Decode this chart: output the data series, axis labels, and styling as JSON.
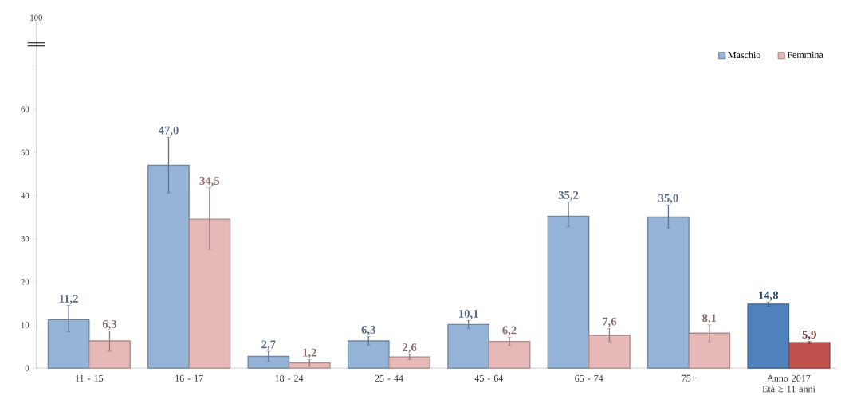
{
  "chart_data": {
    "type": "bar",
    "categories": [
      "11 - 15",
      "16 - 17",
      "18 - 24",
      "25 - 44",
      "45 - 64",
      "65 - 74",
      "75+",
      "Anno 2017 Età ≥ 11 anni"
    ],
    "series": [
      {
        "name": "Maschio",
        "color": "#95b3d7",
        "colors": [
          "#95b3d7",
          "#95b3d7",
          "#95b3d7",
          "#95b3d7",
          "#95b3d7",
          "#95b3d7",
          "#95b3d7",
          "#4f81bd"
        ],
        "values": [
          11.2,
          47.0,
          2.7,
          6.3,
          10.1,
          35.2,
          35.0,
          14.8
        ],
        "value_labels": [
          "11,2",
          "47,0",
          "2,7",
          "6,3",
          "10,1",
          "35,2",
          "35,0",
          "14,8"
        ],
        "errors": [
          [
            8.4,
            14.5
          ],
          [
            40.6,
            53.5
          ],
          [
            1.5,
            3.9
          ],
          [
            5.3,
            7.3
          ],
          [
            9.2,
            11.0
          ],
          [
            32.7,
            38.5
          ],
          [
            32.5,
            37.8
          ],
          [
            14.3,
            15.3
          ]
        ]
      },
      {
        "name": "Femmina",
        "color": "#e6b9b8",
        "colors": [
          "#e6b9b8",
          "#e6b9b8",
          "#e6b9b8",
          "#e6b9b8",
          "#e6b9b8",
          "#e6b9b8",
          "#e6b9b8",
          "#c0504d"
        ],
        "values": [
          6.3,
          34.5,
          1.2,
          2.6,
          6.2,
          7.6,
          8.1,
          5.9
        ],
        "value_labels": [
          "6,3",
          "34,5",
          "1,2",
          "2,6",
          "6,2",
          "7,6",
          "8,1",
          "5,9"
        ],
        "errors": [
          [
            3.9,
            8.6
          ],
          [
            27.5,
            41.8
          ],
          [
            0.4,
            2.0
          ],
          [
            2.0,
            3.2
          ],
          [
            5.2,
            7.2
          ],
          [
            6.1,
            9.2
          ],
          [
            6.1,
            10.0
          ],
          [
            5.6,
            6.2
          ]
        ]
      }
    ],
    "ylim": [
      0,
      80
    ],
    "yticks": [
      0,
      10,
      20,
      30,
      40,
      50,
      60,
      {
        "value": 70,
        "label": null
      }
    ],
    "annotations": [
      "100"
    ],
    "legend": "top right",
    "grid": false
  }
}
